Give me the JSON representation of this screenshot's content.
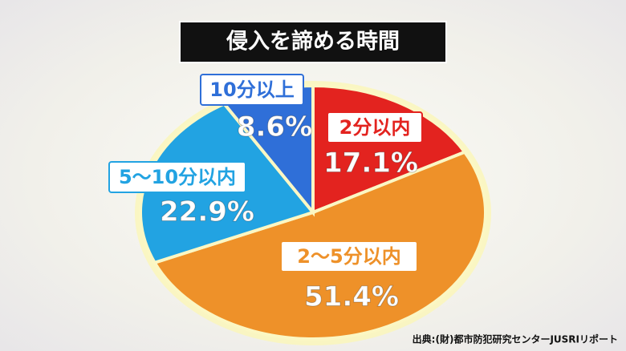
{
  "chart_data": {
    "type": "pie",
    "title": "侵入を諦める時間",
    "categories": [
      "2分以内",
      "2～5分以内",
      "5～10分以内",
      "10分以上"
    ],
    "values": [
      17.1,
      51.4,
      22.9,
      8.6
    ],
    "value_labels": [
      "17.1%",
      "51.4%",
      "22.9%",
      "8.6%"
    ],
    "colors": [
      "#e3231f",
      "#ee9129",
      "#22a3e2",
      "#2f6fd8"
    ],
    "source": "出典:(財)都市防犯研究センターJUSRIリポート"
  }
}
